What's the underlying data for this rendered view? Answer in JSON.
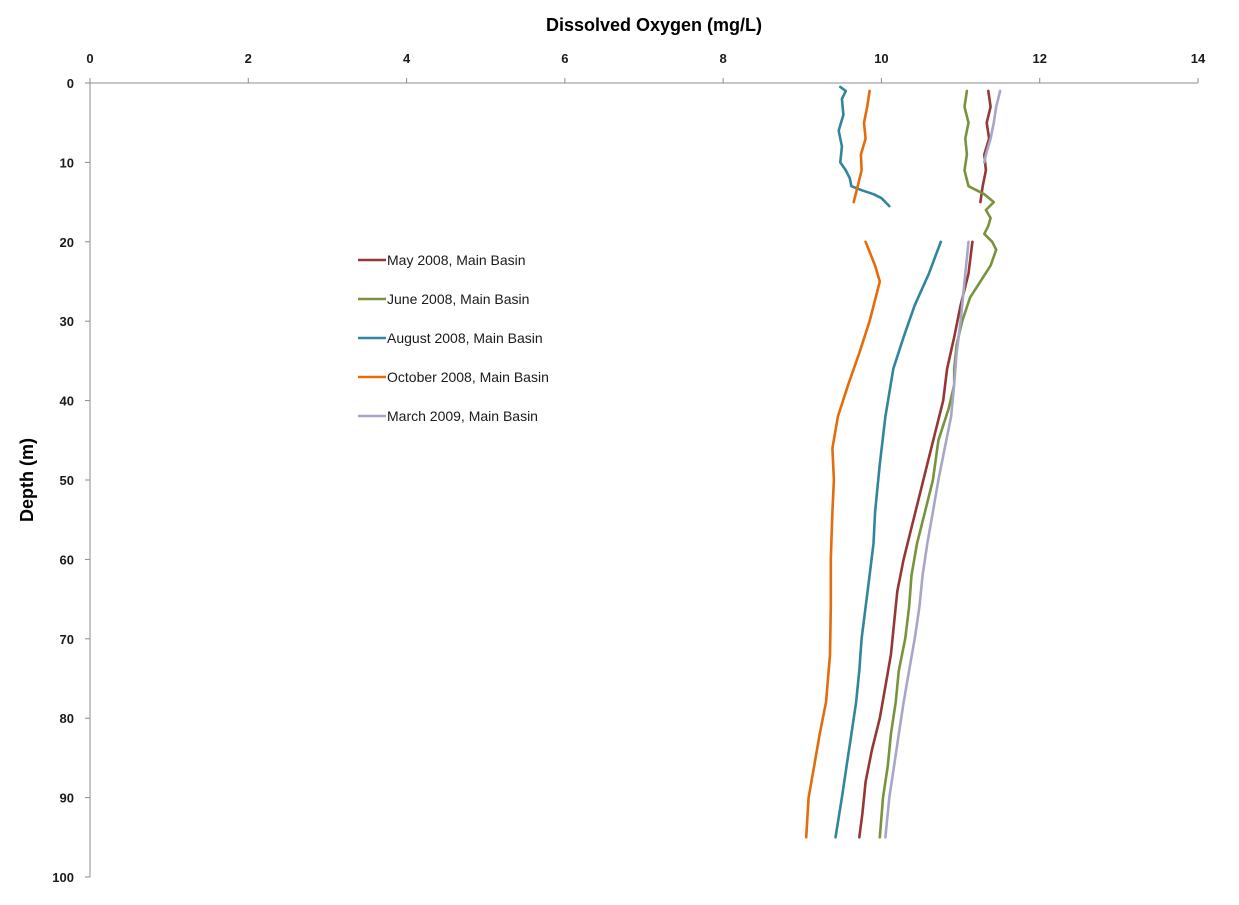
{
  "chart_data": {
    "type": "line",
    "title": "",
    "xlabel": "Dissolved Oxygen (mg/L)",
    "ylabel": "Depth (m)",
    "xlim": [
      0,
      14
    ],
    "ylim": [
      0,
      100
    ],
    "y_reversed": true,
    "x_axis_position": "top",
    "x_ticks": [
      "0",
      "2",
      "4",
      "6",
      "8",
      "10",
      "12",
      "14"
    ],
    "y_ticks": [
      "0",
      "10",
      "20",
      "30",
      "40",
      "50",
      "60",
      "70",
      "80",
      "90",
      "100"
    ],
    "grid": false,
    "legend_position": "top-left",
    "series": [
      {
        "name": "May 2008, Main Basin",
        "color": "#953735",
        "segments": [
          [
            [
              11.35,
              1
            ],
            [
              11.38,
              3
            ],
            [
              11.33,
              5
            ],
            [
              11.36,
              7
            ],
            [
              11.3,
              9
            ],
            [
              11.32,
              11
            ],
            [
              11.28,
              13
            ],
            [
              11.25,
              15
            ]
          ],
          [
            [
              11.15,
              20
            ],
            [
              11.1,
              24
            ],
            [
              11.0,
              28
            ],
            [
              10.92,
              32
            ],
            [
              10.83,
              36
            ],
            [
              10.78,
              40
            ],
            [
              10.68,
              44
            ],
            [
              10.58,
              48
            ],
            [
              10.48,
              52
            ],
            [
              10.38,
              56
            ],
            [
              10.28,
              60
            ],
            [
              10.2,
              64
            ],
            [
              10.16,
              68
            ],
            [
              10.12,
              72
            ],
            [
              10.05,
              76
            ],
            [
              9.98,
              80
            ],
            [
              9.88,
              84
            ],
            [
              9.8,
              88
            ],
            [
              9.76,
              92
            ],
            [
              9.72,
              95
            ]
          ]
        ]
      },
      {
        "name": "June 2008, Main Basin",
        "color": "#77933C",
        "segments": [
          [
            [
              11.08,
              1
            ],
            [
              11.05,
              3
            ],
            [
              11.1,
              5
            ],
            [
              11.06,
              7
            ],
            [
              11.08,
              9
            ],
            [
              11.05,
              11
            ],
            [
              11.1,
              13
            ],
            [
              11.3,
              14
            ],
            [
              11.42,
              15
            ],
            [
              11.32,
              16
            ],
            [
              11.38,
              17
            ],
            [
              11.35,
              18
            ],
            [
              11.3,
              19
            ],
            [
              11.4,
              20
            ],
            [
              11.45,
              21
            ],
            [
              11.38,
              23
            ],
            [
              11.25,
              25
            ],
            [
              11.12,
              27
            ],
            [
              11.02,
              30
            ],
            [
              10.95,
              33
            ],
            [
              10.92,
              36
            ],
            [
              10.92,
              38
            ],
            [
              10.85,
              41
            ],
            [
              10.72,
              45
            ],
            [
              10.65,
              50
            ],
            [
              10.55,
              54
            ],
            [
              10.45,
              58
            ],
            [
              10.38,
              62
            ],
            [
              10.35,
              66
            ],
            [
              10.3,
              70
            ],
            [
              10.22,
              74
            ],
            [
              10.18,
              78
            ],
            [
              10.12,
              82
            ],
            [
              10.08,
              86
            ],
            [
              10.02,
              90
            ],
            [
              9.98,
              95
            ]
          ]
        ]
      },
      {
        "name": "August 2008, Main Basin",
        "color": "#31859C",
        "segments": [
          [
            [
              9.48,
              0.5
            ],
            [
              9.55,
              1
            ],
            [
              9.5,
              2
            ],
            [
              9.52,
              4
            ],
            [
              9.46,
              6
            ],
            [
              9.5,
              8
            ],
            [
              9.48,
              10
            ],
            [
              9.55,
              11
            ],
            [
              9.6,
              12
            ],
            [
              9.62,
              13
            ],
            [
              9.75,
              13.5
            ],
            [
              9.9,
              14
            ],
            [
              10.0,
              14.5
            ],
            [
              10.1,
              15.5
            ]
          ],
          [
            [
              10.75,
              20
            ],
            [
              10.6,
              24
            ],
            [
              10.42,
              28
            ],
            [
              10.28,
              32
            ],
            [
              10.15,
              36
            ],
            [
              10.05,
              42
            ],
            [
              9.98,
              48
            ],
            [
              9.92,
              54
            ],
            [
              9.9,
              58
            ],
            [
              9.85,
              62
            ],
            [
              9.8,
              66
            ],
            [
              9.75,
              70
            ],
            [
              9.72,
              74
            ],
            [
              9.68,
              78
            ],
            [
              9.62,
              82
            ],
            [
              9.56,
              86
            ],
            [
              9.5,
              90
            ],
            [
              9.42,
              95
            ]
          ]
        ]
      },
      {
        "name": "October 2008, Main Basin",
        "color": "#E46C0A",
        "segments": [
          [
            [
              9.85,
              1
            ],
            [
              9.82,
              3
            ],
            [
              9.78,
              5
            ],
            [
              9.8,
              7
            ],
            [
              9.74,
              9
            ],
            [
              9.75,
              11
            ],
            [
              9.7,
              13
            ],
            [
              9.65,
              15
            ]
          ],
          [
            [
              9.8,
              20
            ],
            [
              9.92,
              23
            ],
            [
              9.98,
              25
            ],
            [
              9.85,
              30
            ],
            [
              9.72,
              34
            ],
            [
              9.58,
              38
            ],
            [
              9.45,
              42
            ],
            [
              9.38,
              46
            ],
            [
              9.4,
              50
            ],
            [
              9.38,
              54
            ],
            [
              9.36,
              60
            ],
            [
              9.36,
              66
            ],
            [
              9.35,
              72
            ],
            [
              9.3,
              78
            ],
            [
              9.22,
              82
            ],
            [
              9.15,
              86
            ],
            [
              9.08,
              90
            ],
            [
              9.05,
              95
            ]
          ]
        ]
      },
      {
        "name": "March 2009, Main Basin",
        "color": "#A6A6C8",
        "segments": [
          [
            [
              11.5,
              1
            ],
            [
              11.45,
              3
            ],
            [
              11.42,
              5
            ],
            [
              11.38,
              7
            ],
            [
              11.32,
              9
            ],
            [
              11.3,
              10
            ]
          ],
          [
            [
              11.1,
              20
            ],
            [
              11.05,
              25
            ],
            [
              11.0,
              30
            ],
            [
              10.95,
              34
            ],
            [
              10.92,
              38
            ],
            [
              10.88,
              42
            ],
            [
              10.8,
              46
            ],
            [
              10.72,
              50
            ],
            [
              10.65,
              54
            ],
            [
              10.58,
              58
            ],
            [
              10.52,
              62
            ],
            [
              10.48,
              66
            ],
            [
              10.42,
              70
            ],
            [
              10.35,
              74
            ],
            [
              10.28,
              78
            ],
            [
              10.22,
              82
            ],
            [
              10.16,
              86
            ],
            [
              10.1,
              90
            ],
            [
              10.05,
              95
            ]
          ]
        ]
      }
    ]
  }
}
